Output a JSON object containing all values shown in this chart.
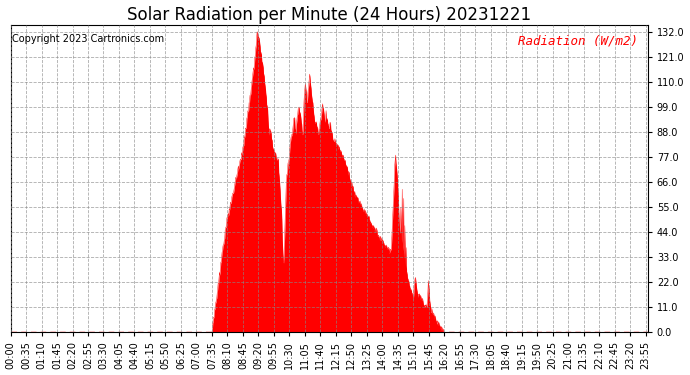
{
  "title": "Solar Radiation per Minute (24 Hours) 20231221",
  "copyright_text": "Copyright 2023 Cartronics.com",
  "ylabel": "Radiation (W/m2)",
  "ylabel_color": "#ff0000",
  "background_color": "#ffffff",
  "plot_color": "#ff0000",
  "fill_color": "#ff0000",
  "grid_color": "#888888",
  "y_ticks": [
    0.0,
    11.0,
    22.0,
    33.0,
    44.0,
    55.0,
    66.0,
    77.0,
    88.0,
    99.0,
    110.0,
    121.0,
    132.0
  ],
  "ylim": [
    0,
    135
  ],
  "x_tick_labels": [
    "00:00",
    "00:35",
    "01:10",
    "01:45",
    "02:20",
    "02:55",
    "03:30",
    "04:05",
    "04:40",
    "05:15",
    "05:50",
    "06:25",
    "07:00",
    "07:35",
    "08:10",
    "08:45",
    "09:20",
    "09:55",
    "10:30",
    "11:05",
    "11:40",
    "12:15",
    "12:50",
    "13:25",
    "14:00",
    "14:35",
    "15:10",
    "15:45",
    "16:20",
    "16:55",
    "17:30",
    "18:05",
    "18:40",
    "19:15",
    "19:50",
    "20:25",
    "21:00",
    "21:35",
    "22:10",
    "22:45",
    "23:20",
    "23:55"
  ],
  "title_fontsize": 12,
  "copyright_fontsize": 7,
  "ylabel_fontsize": 9,
  "tick_fontsize": 7
}
